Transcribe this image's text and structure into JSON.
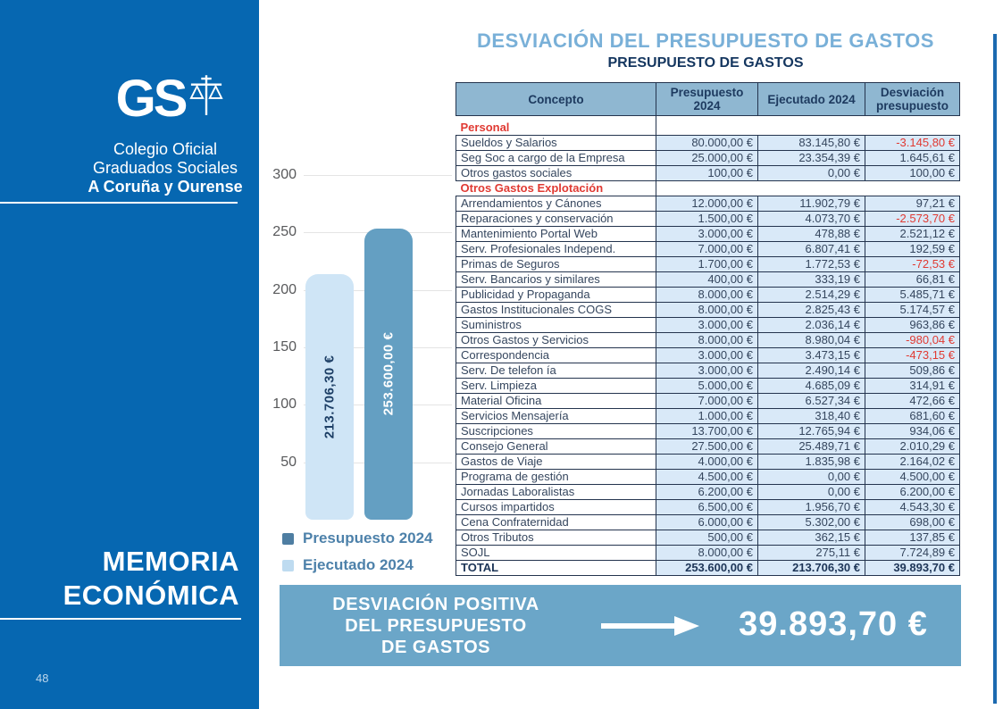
{
  "sidebar": {
    "logo_text": "GS",
    "org_lines": [
      "Colegio Oficial",
      "Graduados Sociales",
      "A Coruña y Ourense"
    ],
    "section_title": "MEMORIA ECONÓMICA",
    "page_number": "48"
  },
  "header": {
    "title": "DESVIACIÓN DEL PRESUPUESTO DE GASTOS",
    "subtitle": "PRESUPUESTO DE GASTOS"
  },
  "table": {
    "headers": [
      "Concepto",
      "Presupuesto 2024",
      "Ejecutado 2024",
      "Desviación presupuesto"
    ],
    "rows": [
      {
        "type": "section",
        "concept": "Personal"
      },
      {
        "type": "data",
        "concept": "Sueldos y Salarios",
        "presupuesto": "80.000,00 €",
        "ejecutado": "83.145,80 €",
        "desviacion": "-3.145,80 €"
      },
      {
        "type": "data",
        "concept": "Seg Soc a cargo de la Empresa",
        "presupuesto": "25.000,00 €",
        "ejecutado": "23.354,39 €",
        "desviacion": "1.645,61 €"
      },
      {
        "type": "data",
        "concept": "Otros gastos sociales",
        "presupuesto": "100,00 €",
        "ejecutado": "0,00 €",
        "desviacion": "100,00 €"
      },
      {
        "type": "section",
        "concept": "Otros Gastos Explotación"
      },
      {
        "type": "data",
        "concept": "Arrendamientos y Cánones",
        "presupuesto": "12.000,00 €",
        "ejecutado": "11.902,79 €",
        "desviacion": "97,21 €"
      },
      {
        "type": "data",
        "concept": "Reparaciones y conservación",
        "presupuesto": "1.500,00 €",
        "ejecutado": "4.073,70 €",
        "desviacion": "-2.573,70 €"
      },
      {
        "type": "data",
        "concept": "Mantenimiento Portal Web",
        "presupuesto": "3.000,00 €",
        "ejecutado": "478,88 €",
        "desviacion": "2.521,12 €"
      },
      {
        "type": "data",
        "concept": "Serv. Profesionales Independ.",
        "presupuesto": "7.000,00 €",
        "ejecutado": "6.807,41 €",
        "desviacion": "192,59 €"
      },
      {
        "type": "data",
        "concept": "Primas de Seguros",
        "presupuesto": "1.700,00 €",
        "ejecutado": "1.772,53 €",
        "desviacion": "-72,53 €"
      },
      {
        "type": "data",
        "concept": "Serv. Bancarios y similares",
        "presupuesto": "400,00 €",
        "ejecutado": "333,19 €",
        "desviacion": "66,81 €"
      },
      {
        "type": "data",
        "concept": "Publicidad y Propaganda",
        "presupuesto": "8.000,00 €",
        "ejecutado": "2.514,29 €",
        "desviacion": "5.485,71 €"
      },
      {
        "type": "data",
        "concept": "Gastos Institucionales COGS",
        "presupuesto": "8.000,00 €",
        "ejecutado": "2.825,43 €",
        "desviacion": "5.174,57 €"
      },
      {
        "type": "data",
        "concept": "Suministros",
        "presupuesto": "3.000,00 €",
        "ejecutado": "2.036,14 €",
        "desviacion": "963,86 €"
      },
      {
        "type": "data",
        "concept": "Otros Gastos y Servicios",
        "presupuesto": "8.000,00 €",
        "ejecutado": "8.980,04 €",
        "desviacion": "-980,04 €"
      },
      {
        "type": "data",
        "concept": "Correspondencia",
        "presupuesto": "3.000,00 €",
        "ejecutado": "3.473,15 €",
        "desviacion": "-473,15 €"
      },
      {
        "type": "data",
        "concept": "Serv. De telefon ía",
        "presupuesto": "3.000,00 €",
        "ejecutado": "2.490,14 €",
        "desviacion": "509,86 €"
      },
      {
        "type": "data",
        "concept": "Serv. Limpieza",
        "presupuesto": "5.000,00 €",
        "ejecutado": "4.685,09 €",
        "desviacion": "314,91 €"
      },
      {
        "type": "data",
        "concept": "Material Oficina",
        "presupuesto": "7.000,00 €",
        "ejecutado": "6.527,34 €",
        "desviacion": "472,66 €"
      },
      {
        "type": "data",
        "concept": "Servicios Mensajería",
        "presupuesto": "1.000,00 €",
        "ejecutado": "318,40 €",
        "desviacion": "681,60 €"
      },
      {
        "type": "data",
        "concept": "Suscripciones",
        "presupuesto": "13.700,00 €",
        "ejecutado": "12.765,94 €",
        "desviacion": "934,06 €"
      },
      {
        "type": "data",
        "concept": "Consejo General",
        "presupuesto": "27.500,00 €",
        "ejecutado": "25.489,71 €",
        "desviacion": "2.010,29 €"
      },
      {
        "type": "data",
        "concept": "Gastos de Viaje",
        "presupuesto": "4.000,00 €",
        "ejecutado": "1.835,98 €",
        "desviacion": "2.164,02 €"
      },
      {
        "type": "data",
        "concept": "Programa de gestión",
        "presupuesto": "4.500,00 €",
        "ejecutado": "0,00 €",
        "desviacion": "4.500,00 €"
      },
      {
        "type": "data",
        "concept": "Jornadas Laboralistas",
        "presupuesto": "6.200,00 €",
        "ejecutado": "0,00 €",
        "desviacion": "6.200,00 €"
      },
      {
        "type": "data",
        "concept": "Cursos impartidos",
        "presupuesto": "6.500,00 €",
        "ejecutado": "1.956,70 €",
        "desviacion": "4.543,30 €"
      },
      {
        "type": "data",
        "concept": "Cena Confraternidad",
        "presupuesto": "6.000,00 €",
        "ejecutado": "5.302,00 €",
        "desviacion": "698,00 €"
      },
      {
        "type": "data",
        "concept": "Otros Tributos",
        "presupuesto": "500,00 €",
        "ejecutado": "362,15 €",
        "desviacion": "137,85 €"
      },
      {
        "type": "data",
        "concept": "SOJL",
        "presupuesto": "8.000,00 €",
        "ejecutado": "275,11 €",
        "desviacion": "7.724,89 €"
      },
      {
        "type": "total",
        "concept": "TOTAL",
        "presupuesto": "253.600,00 €",
        "ejecutado": "213.706,30 €",
        "desviacion": "39.893,70 €"
      }
    ]
  },
  "chart_data": {
    "type": "bar",
    "title": "",
    "categories": [
      "Ejecutado 2024",
      "Presupuesto 2024"
    ],
    "values": [
      213706.3,
      253600.0
    ],
    "bar_labels": [
      "213.706,30 €",
      "253.600,00 €"
    ],
    "bar_colors": [
      "#cfe5f6",
      "#649fc2"
    ],
    "label_colors": [
      "#1d3f66",
      "#ffffff"
    ],
    "xlabel": "",
    "ylabel": "",
    "y_axis": {
      "unit_divisor": 1000,
      "ticks": [
        300,
        250,
        200,
        150,
        100,
        50
      ],
      "max": 300
    },
    "ylim": [
      0,
      300000
    ],
    "grid": true,
    "legend_position": "bottom",
    "legend": [
      {
        "label": "Presupuesto 2024",
        "color": "#4e7ea2"
      },
      {
        "label": "Ejecutado 2024",
        "color": "#bedbf0"
      }
    ]
  },
  "banner": {
    "lines": [
      "DESVIACIÓN POSITIVA",
      "DEL PRESUPUESTO",
      "DE GASTOS"
    ],
    "amount": "39.893,70 €"
  },
  "colors": {
    "sidebar_blue": "#0667b1",
    "title_light_blue": "#79b0d8",
    "navy": "#1d3557",
    "table_header_blue": "#8fb7d1",
    "cell_light_blue": "#d9e9f8",
    "negative_red": "#e03a33",
    "banner_blue": "#6ba6c8",
    "bar_light": "#cfe5f6",
    "bar_dark": "#649fc2",
    "legend_text_blue": "#4d81aa"
  }
}
